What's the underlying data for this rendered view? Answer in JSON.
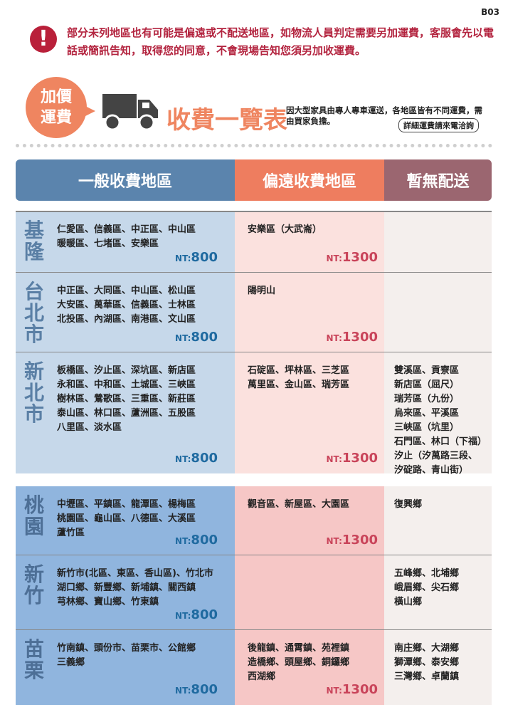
{
  "page_code": "B03",
  "notice": {
    "icon": "exclamation-icon",
    "text": "部分未列地區也有可能是偏遠或不配送地區，如物流人員判定需要另加運費，客服會先以電話或簡訊告知，取得您的同意，不會現場告知您須另加收運費。"
  },
  "banner": {
    "badge_line1": "加價",
    "badge_line2": "運費",
    "title": "收費一覽表",
    "desc": "因大型家具由專人專車運送，各地區皆有不同運費，需由買家負擔。",
    "contact": "詳細運費請來電洽詢"
  },
  "headers": {
    "general": "一般收費地區",
    "remote": "偏遠收費地區",
    "none": "暫無配送"
  },
  "colors": {
    "header_general": "#5b84ad",
    "header_remote": "#ee7d5f",
    "header_none": "#9b6670",
    "general_bg_1": "#c6d8ea",
    "remote_bg_1": "#fbe1de",
    "none_bg": "#f4efed",
    "general_bg_2": "#90b5de",
    "remote_bg_2": "#f6c7c6",
    "price_blue": "#1f6aa0",
    "price_red": "#c9445a"
  },
  "rows": [
    {
      "region": "基隆",
      "general": "仁愛區、信義區、中正區、中山區\n暖暖區、七堵區、安樂區",
      "general_price": "800",
      "remote": "安樂區（大武崙）",
      "remote_price": "1300",
      "none": ""
    },
    {
      "region": "台北市",
      "general": "中正區、大同區、中山區、松山區\n大安區、萬華區、信義區、士林區\n北投區、內湖區、南港區、文山區",
      "general_price": "800",
      "remote": "陽明山",
      "remote_price": "1300",
      "none": ""
    },
    {
      "region": "新北市",
      "general": "板橋區、汐止區、深坑區、新店區\n永和區、中和區、土城區、三峽區\n樹林區、鶯歌區、三重區、新莊區\n泰山區、林口區、蘆洲區、五股區\n八里區、淡水區",
      "general_price": "800",
      "remote": "石碇區、坪林區、三芝區\n萬里區、金山區、瑞芳區",
      "remote_price": "1300",
      "none": "雙溪區、貢寮區\n新店區（屈尺）\n瑞芳區（九份）\n烏來區、平溪區\n三峽區（坑里）\n石門區、林口（下福）\n汐止（汐萬路三段、\n汐碇路、青山街）"
    },
    {
      "region": "桃園",
      "general": "中壢區、平鎮區、龍潭區、楊梅區\n桃園區、龜山區、八德區、大溪區\n蘆竹區",
      "general_price": "800",
      "remote": "觀音區、新屋區、大園區",
      "remote_price": "1300",
      "none": "復興鄉"
    },
    {
      "region": "新竹",
      "general": "新竹市(北區、東區、香山區)、竹北市\n湖口鄉、新豐鄉、新埔鎮、關西鎮\n芎林鄉、寶山鄉、竹東鎮",
      "general_price": "800",
      "remote": "",
      "remote_price": "",
      "none": "五峰鄉、北埔鄉\n峨眉鄉、尖石鄉\n橫山鄉"
    },
    {
      "region": "苗栗",
      "general": "竹南鎮、頭份市、苗栗市、公館鄉\n三義鄉",
      "general_price": "800",
      "remote": "後龍鎮、通霄鎮、苑裡鎮\n造橋鄉、頭屋鄉、銅鑼鄉\n西湖鄉",
      "remote_price": "1300",
      "none": "南庄鄉、大湖鄉\n獅潭鄉、泰安鄉\n三灣鄉、卓蘭鎮"
    }
  ],
  "price_prefix": "NT:"
}
